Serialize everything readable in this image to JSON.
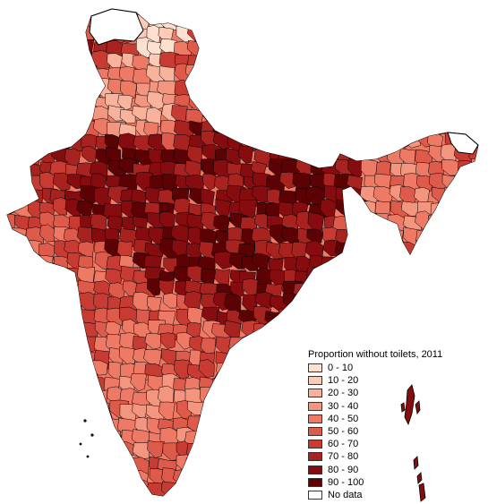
{
  "map": {
    "legend": {
      "title": "Proportion without toilets, 2011",
      "classes": [
        {
          "label": "0 - 10",
          "color": "#fde0cf"
        },
        {
          "label": "10 - 20",
          "color": "#fbcbb6"
        },
        {
          "label": "20 - 30",
          "color": "#f9b29c"
        },
        {
          "label": "30 - 40",
          "color": "#f49580"
        },
        {
          "label": "40 - 50",
          "color": "#ee7a66"
        },
        {
          "label": "50 - 60",
          "color": "#de5a4b"
        },
        {
          "label": "60 - 70",
          "color": "#c73b32"
        },
        {
          "label": "70 - 80",
          "color": "#a8221f"
        },
        {
          "label": "80 - 90",
          "color": "#860c10"
        },
        {
          "label": "90 - 100",
          "color": "#5c0205"
        },
        {
          "label": "No data",
          "color": "#ffffff"
        }
      ]
    }
  }
}
